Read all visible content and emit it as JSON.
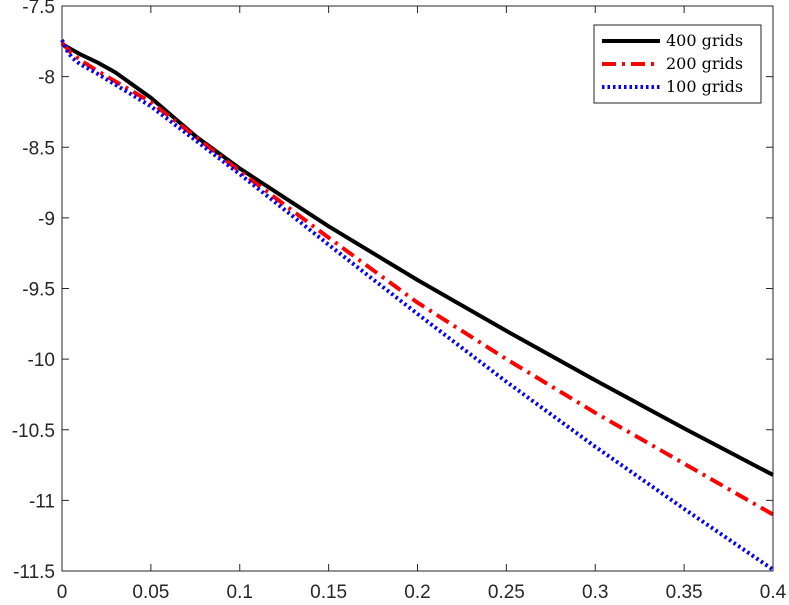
{
  "chart_data": {
    "type": "line",
    "title": "",
    "xlabel": "",
    "ylabel": "",
    "xlim": [
      0,
      0.4
    ],
    "ylim": [
      -11.5,
      -7.5
    ],
    "xticks": [
      0,
      0.05,
      0.1,
      0.15,
      0.2,
      0.25,
      0.3,
      0.35,
      0.4
    ],
    "xtick_labels": [
      "0",
      "0.05",
      "0.1",
      "0.15",
      "0.2",
      "0.25",
      "0.3",
      "0.35",
      "0.4"
    ],
    "yticks": [
      -7.5,
      -8,
      -8.5,
      -9,
      -9.5,
      -10,
      -10.5,
      -11,
      -11.5
    ],
    "ytick_labels": [
      "-7.5",
      "-8",
      "-8.5",
      "-9",
      "-9.5",
      "-10",
      "-10.5",
      "-11",
      "-11.5"
    ],
    "grid": false,
    "legend_position": "top-right",
    "series": [
      {
        "name": "400 grids",
        "color": "#000000",
        "style": "solid",
        "x": [
          0,
          0.01,
          0.02,
          0.03,
          0.05,
          0.075,
          0.1,
          0.15,
          0.2,
          0.25,
          0.3,
          0.35,
          0.4
        ],
        "y": [
          -7.77,
          -7.84,
          -7.9,
          -7.97,
          -8.15,
          -8.42,
          -8.65,
          -9.06,
          -9.44,
          -9.8,
          -10.15,
          -10.49,
          -10.82
        ]
      },
      {
        "name": "200 grids",
        "color": "#ff0000",
        "style": "dashdot",
        "x": [
          0,
          0.005,
          0.01,
          0.02,
          0.05,
          0.1,
          0.15,
          0.2,
          0.25,
          0.3,
          0.35,
          0.4
        ],
        "y": [
          -7.76,
          -7.83,
          -7.88,
          -7.96,
          -8.18,
          -8.67,
          -9.14,
          -9.6,
          -10.0,
          -10.38,
          -10.74,
          -11.1
        ]
      },
      {
        "name": "100 grids",
        "color": "#0000ff",
        "style": "dotted",
        "x": [
          0,
          0.003,
          0.006,
          0.01,
          0.02,
          0.05,
          0.1,
          0.15,
          0.2,
          0.25,
          0.3,
          0.35,
          0.4
        ],
        "y": [
          -7.74,
          -7.82,
          -7.87,
          -7.91,
          -7.98,
          -8.21,
          -8.69,
          -9.19,
          -9.68,
          -10.16,
          -10.62,
          -11.06,
          -11.49
        ]
      }
    ]
  }
}
